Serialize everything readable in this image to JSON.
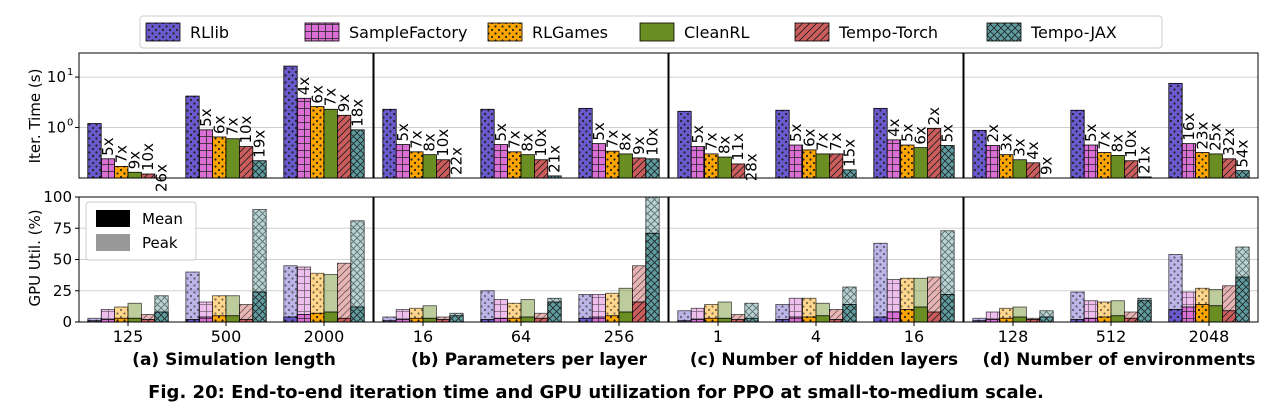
{
  "legend": {
    "items": [
      {
        "name": "RLlib",
        "color": "#6A5ACD",
        "hatch": "dots"
      },
      {
        "name": "SampleFactory",
        "color": "#DA70D6",
        "hatch": "grid"
      },
      {
        "name": "RLGames",
        "color": "#FFA500",
        "hatch": "dots"
      },
      {
        "name": "CleanRL",
        "color": "#6B8E23",
        "hatch": "none"
      },
      {
        "name": "Tempo-Torch",
        "color": "#CD5C5C",
        "hatch": "diag"
      },
      {
        "name": "Tempo-JAX",
        "color": "#5F9EA0",
        "hatch": "cross"
      }
    ]
  },
  "mean_peak_legend": {
    "mean": "Mean",
    "peak": "Peak"
  },
  "row_labels": {
    "top": "Iter. Time (s)",
    "bottom": "GPU Util. (%)"
  },
  "time_ticks": [
    {
      "label": "10",
      "sup": "1",
      "value": 10
    },
    {
      "label": "10",
      "sup": "0",
      "value": 1
    }
  ],
  "util_ticks": [
    "0",
    "25",
    "50",
    "75",
    "100"
  ],
  "caption": "Fig. 20: End-to-end iteration time and GPU utilization for PPO at small-to-medium scale.",
  "chart_data": [
    {
      "type": "bar",
      "subtitle": "(a) Simulation length",
      "categories": [
        "125",
        "500",
        "2000"
      ],
      "time_yscale": "log",
      "time": [
        [
          1.2,
          0.24,
          0.17,
          0.13,
          0.12,
          0.046
        ],
        [
          4.2,
          0.9,
          0.65,
          0.6,
          0.42,
          0.22
        ],
        [
          16.5,
          3.8,
          2.6,
          2.3,
          1.75,
          0.9
        ]
      ],
      "speedup": [
        [
          "5x",
          "7x",
          "9x",
          "10x",
          "26x"
        ],
        [
          "5x",
          "6x",
          "7x",
          "10x",
          "19x"
        ],
        [
          "4x",
          "6x",
          "7x",
          "9x",
          "18x"
        ]
      ],
      "util_mean": [
        [
          1,
          2,
          3,
          3,
          2,
          8
        ],
        [
          2,
          4,
          5,
          5,
          2,
          24
        ],
        [
          4,
          6,
          7,
          8,
          3,
          12
        ]
      ],
      "util_peak": [
        [
          3,
          10,
          12,
          15,
          6,
          21
        ],
        [
          40,
          16,
          21,
          21,
          14,
          90
        ],
        [
          45,
          44,
          39,
          38,
          47,
          81
        ]
      ]
    },
    {
      "type": "bar",
      "subtitle": "(b) Parameters per layer",
      "categories": [
        "16",
        "64",
        "256"
      ],
      "time_yscale": "log",
      "time": [
        [
          2.3,
          0.46,
          0.33,
          0.29,
          0.23,
          0.1
        ],
        [
          2.3,
          0.46,
          0.33,
          0.29,
          0.23,
          0.11
        ],
        [
          2.4,
          0.48,
          0.34,
          0.3,
          0.25,
          0.24
        ]
      ],
      "speedup": [
        [
          "5x",
          "7x",
          "8x",
          "10x",
          "22x"
        ],
        [
          "5x",
          "7x",
          "8x",
          "10x",
          "21x"
        ],
        [
          "5x",
          "7x",
          "8x",
          "9x",
          "10x"
        ]
      ],
      "util_mean": [
        [
          1,
          2,
          3,
          3,
          2,
          5
        ],
        [
          2,
          3,
          3,
          4,
          3,
          16
        ],
        [
          3,
          4,
          5,
          8,
          16,
          71
        ]
      ],
      "util_peak": [
        [
          4,
          10,
          11,
          13,
          4,
          7
        ],
        [
          25,
          18,
          15,
          18,
          7,
          19
        ],
        [
          22,
          22,
          23,
          27,
          45,
          100
        ]
      ]
    },
    {
      "type": "bar",
      "subtitle": "(c) Number of hidden layers",
      "categories": [
        "1",
        "4",
        "16"
      ],
      "time_yscale": "log",
      "time": [
        [
          2.1,
          0.42,
          0.3,
          0.26,
          0.19,
          0.075
        ],
        [
          2.2,
          0.45,
          0.36,
          0.3,
          0.3,
          0.145
        ],
        [
          2.4,
          0.57,
          0.45,
          0.4,
          0.96,
          0.44
        ]
      ],
      "speedup": [
        [
          "5x",
          "7x",
          "8x",
          "11x",
          "28x"
        ],
        [
          "5x",
          "6x",
          "7x",
          "7x",
          "15x"
        ],
        [
          "4x",
          "5x",
          "6x",
          "2x",
          "5x"
        ]
      ],
      "util_mean": [
        [
          1,
          2,
          3,
          3,
          2,
          3
        ],
        [
          2,
          4,
          4,
          5,
          2,
          14
        ],
        [
          4,
          8,
          10,
          12,
          8,
          22
        ]
      ],
      "util_peak": [
        [
          9,
          11,
          14,
          16,
          6,
          15
        ],
        [
          14,
          19,
          19,
          15,
          10,
          28
        ],
        [
          63,
          34,
          35,
          35,
          36,
          73
        ]
      ]
    },
    {
      "type": "bar",
      "subtitle": "(d) Number of environments",
      "categories": [
        "128",
        "512",
        "2048"
      ],
      "time_yscale": "log",
      "time": [
        [
          0.88,
          0.44,
          0.29,
          0.23,
          0.2,
          0.1
        ],
        [
          2.2,
          0.45,
          0.32,
          0.28,
          0.22,
          0.105
        ],
        [
          7.5,
          0.48,
          0.32,
          0.3,
          0.24,
          0.14
        ]
      ],
      "speedup": [
        [
          "2x",
          "3x",
          "3x",
          "4x",
          "9x"
        ],
        [
          "5x",
          "7x",
          "8x",
          "10x",
          "21x"
        ],
        [
          "16x",
          "23x",
          "25x",
          "32x",
          "54x"
        ]
      ],
      "util_mean": [
        [
          1,
          2,
          3,
          4,
          2,
          4
        ],
        [
          2,
          3,
          4,
          5,
          3,
          17
        ],
        [
          10,
          12,
          14,
          13,
          9,
          36
        ]
      ],
      "util_peak": [
        [
          3,
          8,
          11,
          12,
          3,
          9
        ],
        [
          24,
          17,
          16,
          17,
          8,
          19
        ],
        [
          54,
          24,
          27,
          26,
          29,
          60
        ]
      ]
    }
  ]
}
